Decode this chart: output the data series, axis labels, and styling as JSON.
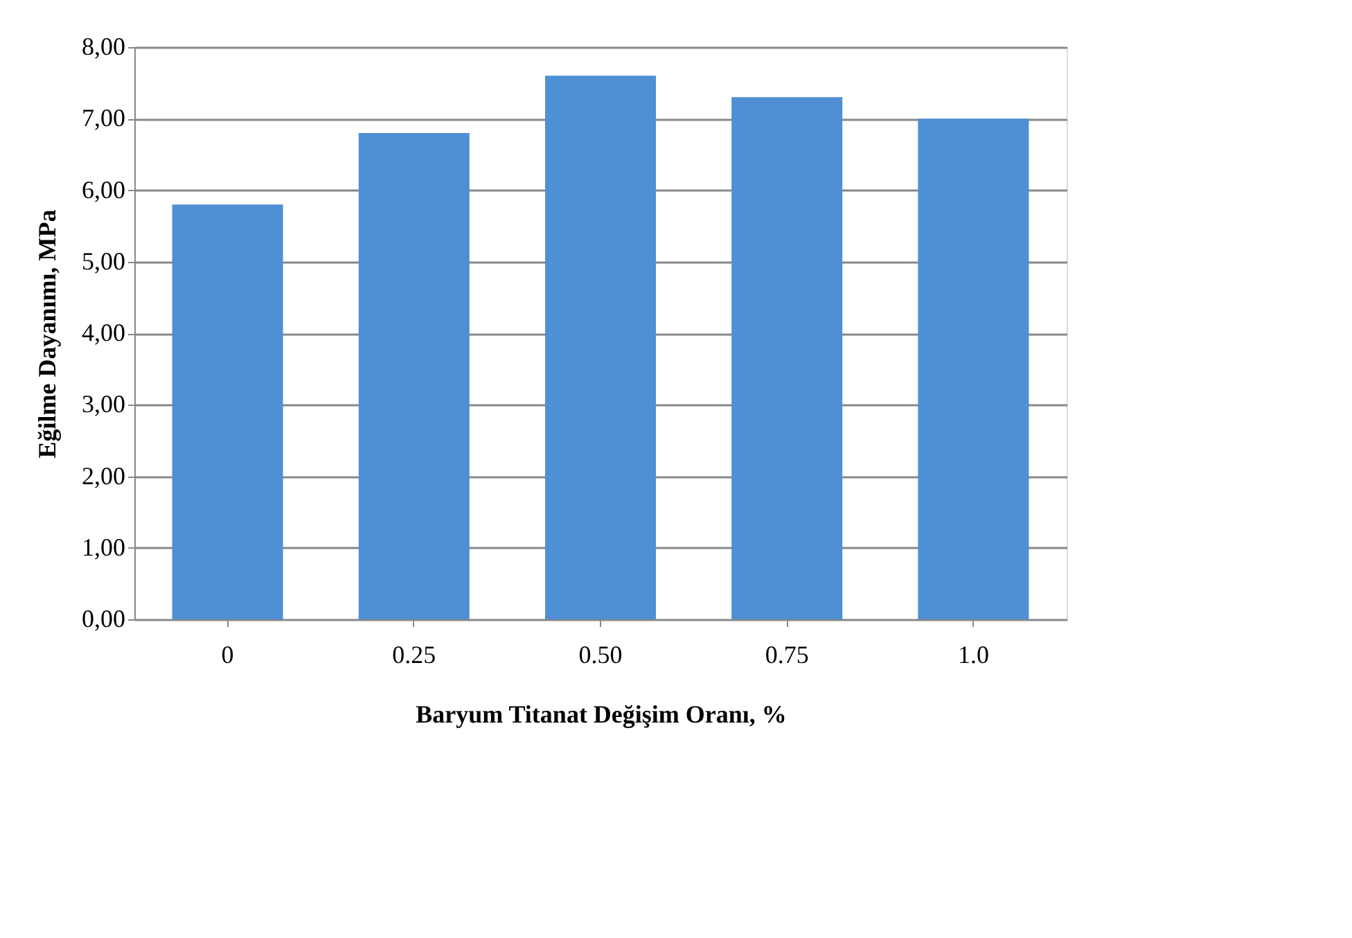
{
  "chart_data": {
    "type": "bar",
    "xlabel": "Baryum Titanat Değişim Oranı, %",
    "ylabel": "Eğilme Dayanımı, MPa",
    "categories": [
      "0",
      "0.25",
      "0.50",
      "0.75",
      "1.0"
    ],
    "values": [
      5.8,
      6.8,
      7.6,
      7.3,
      7.0
    ],
    "color": "#4f8fd4",
    "ylim": [
      0,
      8
    ],
    "yticks": [
      {
        "value": 0,
        "label": "0,00"
      },
      {
        "value": 1,
        "label": "1,00"
      },
      {
        "value": 2,
        "label": "2,00"
      },
      {
        "value": 3,
        "label": "3,00"
      },
      {
        "value": 4,
        "label": "4,00"
      },
      {
        "value": 5,
        "label": "5,00"
      },
      {
        "value": 6,
        "label": "6,00"
      },
      {
        "value": 7,
        "label": "7,00"
      },
      {
        "value": 8,
        "label": "8,00"
      }
    ],
    "grid": "y"
  }
}
